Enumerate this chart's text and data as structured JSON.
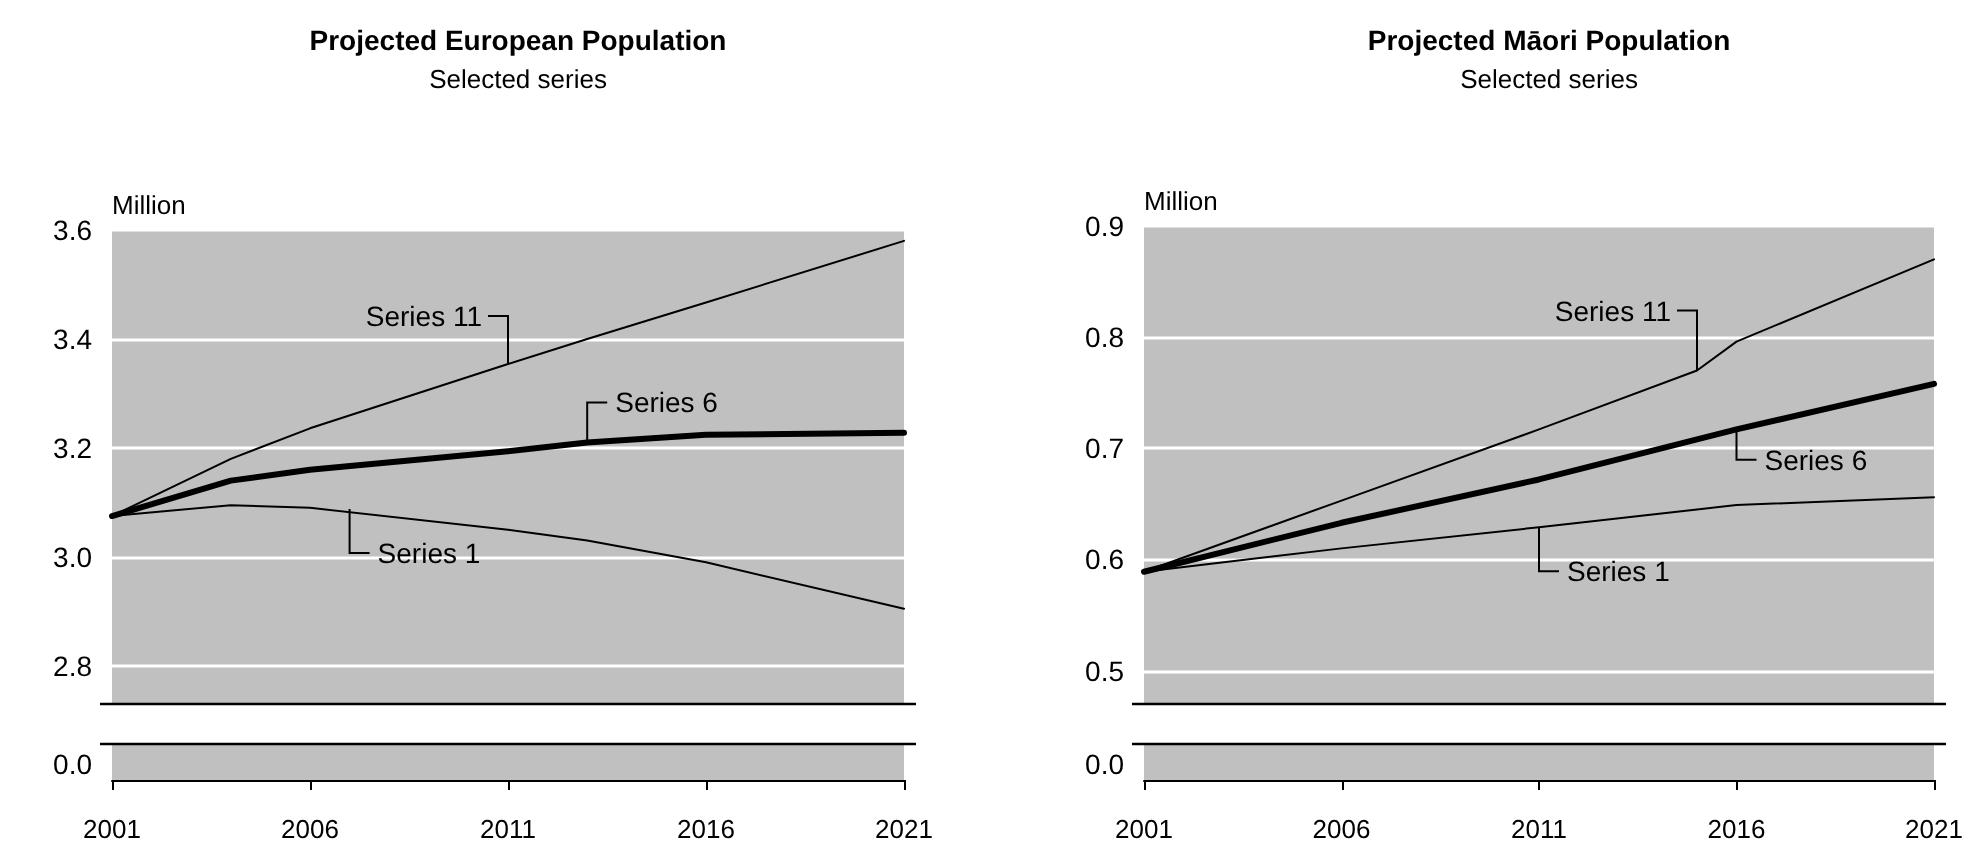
{
  "chart_data": [
    {
      "type": "line",
      "title": "Projected European Population",
      "subtitle": "Selected series",
      "ylabel": "Million",
      "x": [
        2001,
        2004,
        2006,
        2011,
        2013,
        2016,
        2021
      ],
      "xlim": [
        2001,
        2021
      ],
      "xticks": [
        2001,
        2006,
        2011,
        2016,
        2021
      ],
      "ylim": [
        2.73,
        3.6
      ],
      "yticks": [
        {
          "value": 2.8,
          "label": "2.8"
        },
        {
          "value": 3,
          "label": "3.0"
        },
        {
          "value": 3.2,
          "label": "3.2"
        },
        {
          "value": 3.4,
          "label": "3.4"
        },
        {
          "value": 3.6,
          "label": "3.6"
        }
      ],
      "grid": "y",
      "series": [
        {
          "color": "#000000",
          "values": [
            3.075,
            3.18,
            3.236,
            3.354,
            3.4,
            3.467,
            3.58
          ]
        },
        {
          "color": "#000000",
          "values": [
            3.075,
            3.14,
            3.16,
            3.194,
            3.21,
            3.224,
            3.228
          ]
        },
        {
          "color": "#000000",
          "values": [
            3.075,
            3.095,
            3.09,
            3.05,
            3.03,
            2.99,
            2.905
          ]
        }
      ],
      "annotations": [
        {
          "text": "Series 11",
          "x": 2011,
          "y": 3.354
        },
        {
          "text": "Series 6",
          "x": 2013,
          "y": 3.21
        },
        {
          "text": "Series 1",
          "x": 2007,
          "y": 3.088
        },
        "0.0"
      ]
    },
    {
      "type": "line",
      "title": "Projected Māori Population",
      "subtitle": "Selected series",
      "ylabel": "Million",
      "x": [
        2001,
        2006,
        2011,
        2015,
        2016,
        2021
      ],
      "xlim": [
        2001,
        2021
      ],
      "xticks": [
        2001,
        2006,
        2011,
        2016,
        2021
      ],
      "ylim": [
        0.47,
        0.9
      ],
      "yticks": [
        {
          "value": 0.5,
          "label": "0.5"
        },
        {
          "value": 0.6,
          "label": "0.6"
        },
        {
          "value": 0.7,
          "label": "0.7"
        },
        {
          "value": 0.8,
          "label": "0.8"
        },
        {
          "value": 0.9,
          "label": "0.9"
        }
      ],
      "grid": "y",
      "series": [
        {
          "color": "#000000",
          "values": [
            0.589,
            0.653,
            0.717,
            0.77,
            0.796,
            0.87
          ]
        },
        {
          "color": "#000000",
          "values": [
            0.589,
            0.633,
            0.672,
            0.708,
            0.717,
            0.758
          ]
        },
        {
          "color": "#000000",
          "values": [
            0.589,
            0.61,
            0.629,
            0.645,
            0.649,
            0.656
          ]
        }
      ],
      "annotations": [
        {
          "text": "Series 11",
          "x": 2015,
          "y": 0.77
        },
        {
          "text": "Series 6",
          "x": 2016,
          "y": 0.715
        },
        {
          "text": "Series 1",
          "x": 2011,
          "y": 0.629
        },
        "0.0"
      ]
    }
  ]
}
